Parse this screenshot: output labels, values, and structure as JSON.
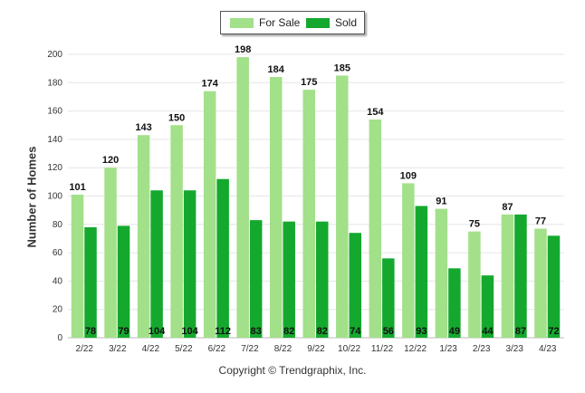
{
  "chart_data": {
    "type": "bar",
    "ylabel": "Number of Homes",
    "ylim": [
      0,
      200
    ],
    "yticks": [
      0,
      20,
      40,
      60,
      80,
      100,
      120,
      140,
      160,
      180,
      200
    ],
    "categories": [
      "2/22",
      "3/22",
      "4/22",
      "5/22",
      "6/22",
      "7/22",
      "8/22",
      "9/22",
      "10/22",
      "11/22",
      "12/22",
      "1/23",
      "2/23",
      "3/23",
      "4/23"
    ],
    "series": [
      {
        "name": "For Sale",
        "color": "#a3e08a",
        "values": [
          101,
          120,
          143,
          150,
          174,
          198,
          184,
          175,
          185,
          154,
          109,
          91,
          75,
          87,
          77
        ]
      },
      {
        "name": "Sold",
        "color": "#15a82e",
        "values": [
          78,
          79,
          104,
          104,
          112,
          83,
          82,
          82,
          74,
          56,
          93,
          49,
          44,
          87,
          72
        ]
      }
    ],
    "legend_position": "top-center",
    "grid": true
  },
  "footer": {
    "copyright": "Copyright © Trendgraphix, Inc."
  }
}
